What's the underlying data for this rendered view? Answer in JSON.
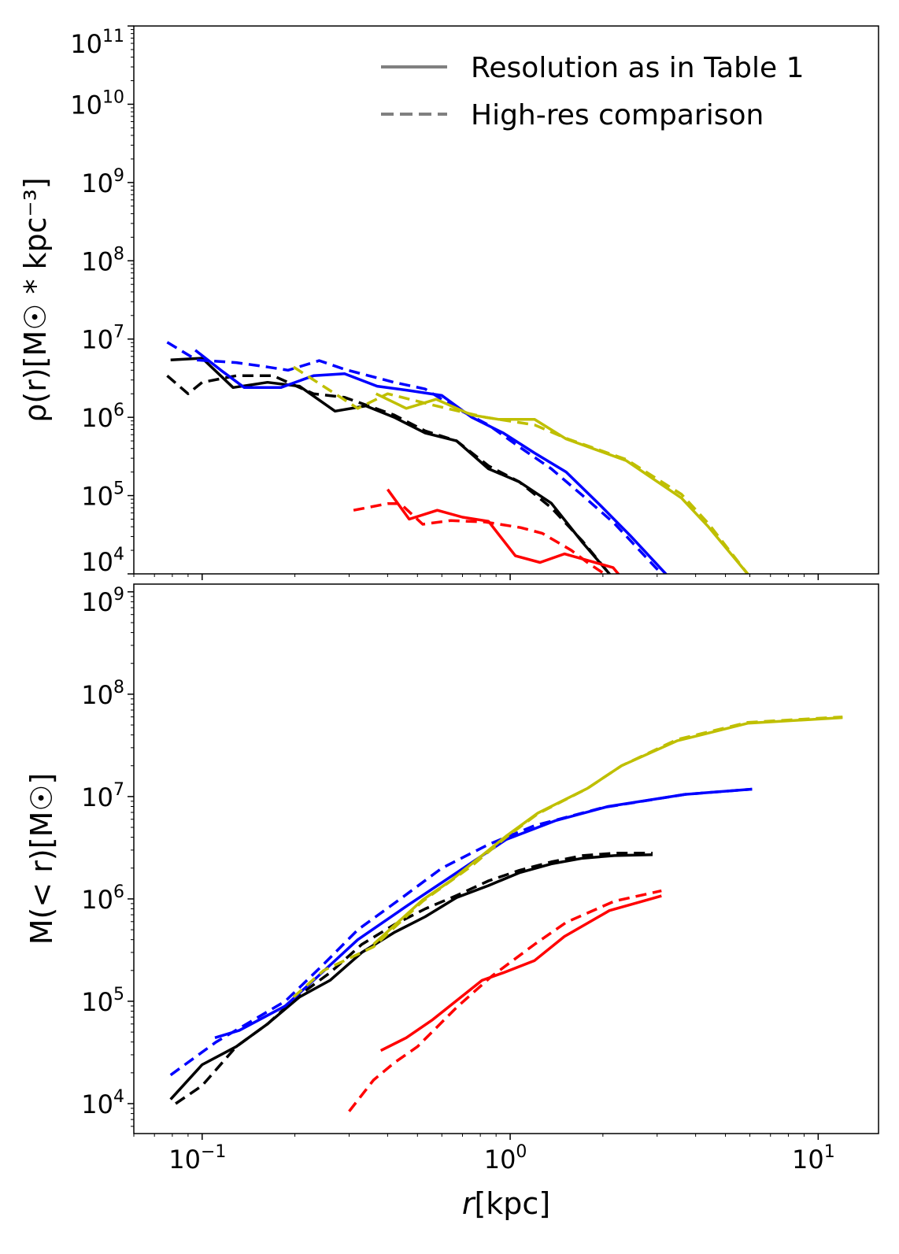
{
  "legend": {
    "position": "top-right",
    "entries": [
      {
        "label": "Resolution as in Table 1",
        "style": "solid",
        "color": "#808080"
      },
      {
        "label": "High-res comparison",
        "style": "dashed",
        "color": "#808080"
      }
    ]
  },
  "xaxis": {
    "label": "r[kpc]",
    "label_italic": "r",
    "label_rest": "[kpc]",
    "scale": "log",
    "xlim": [
      0.06,
      15.7
    ],
    "ticks": [
      0.1,
      1,
      10
    ],
    "tick_labels": [
      {
        "base": "10",
        "exp": "−1"
      },
      {
        "base": "10",
        "exp": "0"
      },
      {
        "base": "10",
        "exp": "1"
      }
    ]
  },
  "chart_data": [
    {
      "type": "line",
      "panel": "density",
      "ylabel": "ρ(r)[M☉ * kpc⁻³]",
      "yscale": "log",
      "ylim": [
        10000,
        100000000000
      ],
      "yticks": [
        10000.0,
        100000.0,
        1000000.0,
        10000000.0,
        100000000.0,
        1000000000.0,
        10000000000.0,
        100000000000.0
      ],
      "ytick_labels": [
        {
          "base": "10",
          "exp": "4"
        },
        {
          "base": "10",
          "exp": "5"
        },
        {
          "base": "10",
          "exp": "6"
        },
        {
          "base": "10",
          "exp": "7"
        },
        {
          "base": "10",
          "exp": "8"
        },
        {
          "base": "10",
          "exp": "9"
        },
        {
          "base": "10",
          "exp": "10"
        },
        {
          "base": "10",
          "exp": "11"
        }
      ],
      "series": [
        {
          "name": "black-solid",
          "color": "#000000",
          "style": "solid",
          "points": [
            [
              0.079,
              5400000.0
            ],
            [
              0.1,
              5700000.0
            ],
            [
              0.126,
              2400000.0
            ],
            [
              0.163,
              2800000.0
            ],
            [
              0.207,
              2500000.0
            ],
            [
              0.27,
              1200000.0
            ],
            [
              0.34,
              1400000.0
            ],
            [
              0.42,
              1000000.0
            ],
            [
              0.53,
              630000.0
            ],
            [
              0.67,
              500000.0
            ],
            [
              0.85,
              220000.0
            ],
            [
              1.07,
              150000.0
            ],
            [
              1.36,
              80000.0
            ],
            [
              1.72,
              25000.0
            ],
            [
              2.1,
              10000.0
            ],
            [
              2.3,
              7000.0
            ]
          ]
        },
        {
          "name": "black-dashed",
          "color": "#000000",
          "style": "dashed",
          "points": [
            [
              0.077,
              3400000.0
            ],
            [
              0.09,
              2000000.0
            ],
            [
              0.1,
              2800000.0
            ],
            [
              0.129,
              3400000.0
            ],
            [
              0.17,
              3400000.0
            ],
            [
              0.23,
              2000000.0
            ],
            [
              0.29,
              1800000.0
            ],
            [
              0.42,
              1070000.0
            ],
            [
              0.53,
              670000.0
            ],
            [
              0.67,
              500000.0
            ],
            [
              0.85,
              240000.0
            ],
            [
              1.07,
              150000.0
            ],
            [
              1.36,
              70000.0
            ],
            [
              1.72,
              26000.0
            ],
            [
              2.1,
              10000.0
            ],
            [
              2.3,
              7000.0
            ]
          ]
        },
        {
          "name": "blue-solid",
          "color": "#0000ff",
          "style": "solid",
          "points": [
            [
              0.095,
              7200000.0
            ],
            [
              0.115,
              4000000.0
            ],
            [
              0.137,
              2400000.0
            ],
            [
              0.18,
              2400000.0
            ],
            [
              0.23,
              3400000.0
            ],
            [
              0.29,
              3600000.0
            ],
            [
              0.37,
              2500000.0
            ],
            [
              0.47,
              2200000.0
            ],
            [
              0.6,
              1900000.0
            ],
            [
              0.75,
              1000000.0
            ],
            [
              0.95,
              630000.0
            ],
            [
              1.2,
              350000.0
            ],
            [
              1.52,
              200000.0
            ],
            [
              1.93,
              80000.0
            ],
            [
              2.45,
              31000.0
            ],
            [
              3.2,
              10000.0
            ],
            [
              3.4,
              7000.0
            ]
          ]
        },
        {
          "name": "blue-dashed",
          "color": "#0000ff",
          "style": "dashed",
          "points": [
            [
              0.077,
              9100000.0
            ],
            [
              0.096,
              5400000.0
            ],
            [
              0.129,
              5000000.0
            ],
            [
              0.163,
              4400000.0
            ],
            [
              0.19,
              4000000.0
            ],
            [
              0.24,
              5300000.0
            ],
            [
              0.29,
              4100000.0
            ],
            [
              0.42,
              2800000.0
            ],
            [
              0.53,
              2300000.0
            ],
            [
              0.67,
              1300000.0
            ],
            [
              0.85,
              800000.0
            ],
            [
              1.07,
              420000.0
            ],
            [
              1.36,
              220000.0
            ],
            [
              1.72,
              100000.0
            ],
            [
              2.18,
              44000.0
            ],
            [
              3.1,
              10000.0
            ],
            [
              3.3,
              7000.0
            ]
          ]
        },
        {
          "name": "yellow-solid",
          "color": "#bfbf00",
          "style": "solid",
          "points": [
            [
              0.367,
              2000000.0
            ],
            [
              0.46,
              1300000.0
            ],
            [
              0.575,
              1700000.0
            ],
            [
              0.75,
              1070000.0
            ],
            [
              0.92,
              940000.0
            ],
            [
              1.2,
              940000.0
            ],
            [
              1.52,
              530000.0
            ],
            [
              2.38,
              280000.0
            ],
            [
              3.6,
              93000.0
            ],
            [
              4.4,
              40000.0
            ],
            [
              5.9,
              10000.0
            ],
            [
              6.3,
              7000.0
            ]
          ]
        },
        {
          "name": "yellow-dashed",
          "color": "#bfbf00",
          "style": "dashed",
          "points": [
            [
              0.198,
              4400000.0
            ],
            [
              0.32,
              1300000.0
            ],
            [
              0.4,
              2000000.0
            ],
            [
              0.575,
              1400000.0
            ],
            [
              0.83,
              1000000.0
            ],
            [
              1.2,
              800000.0
            ],
            [
              1.52,
              540000.0
            ],
            [
              2.38,
              290000.0
            ],
            [
              3.6,
              104000.0
            ],
            [
              4.4,
              44000.0
            ],
            [
              5.9,
              10000.0
            ],
            [
              6.3,
              7000.0
            ]
          ]
        },
        {
          "name": "red-solid",
          "color": "#ff0000",
          "style": "solid",
          "points": [
            [
              0.4,
              120000.0
            ],
            [
              0.47,
              50000.0
            ],
            [
              0.58,
              65000.0
            ],
            [
              0.7,
              53000.0
            ],
            [
              0.85,
              47000.0
            ],
            [
              1.04,
              17000.0
            ],
            [
              1.25,
              14000.0
            ],
            [
              1.5,
              18000.0
            ],
            [
              2.16,
              12000.0
            ],
            [
              2.35,
              8000.0
            ]
          ]
        },
        {
          "name": "red-dashed",
          "color": "#ff0000",
          "style": "dashed",
          "points": [
            [
              0.31,
              65000.0
            ],
            [
              0.4,
              79000.0
            ],
            [
              0.44,
              79000.0
            ],
            [
              0.52,
              43000.0
            ],
            [
              0.64,
              48000.0
            ],
            [
              0.83,
              46000.0
            ],
            [
              1.08,
              39000.0
            ],
            [
              1.27,
              33000.0
            ],
            [
              1.58,
              20000.0
            ],
            [
              1.78,
              14000.0
            ],
            [
              2.2,
              8000.0
            ]
          ]
        }
      ]
    },
    {
      "type": "line",
      "panel": "enclosed-mass",
      "ylabel": "M(< r)[M☉]",
      "yscale": "log",
      "ylim": [
        5100,
        1190000000
      ],
      "yticks": [
        10000.0,
        100000.0,
        1000000.0,
        10000000.0,
        100000000.0,
        1000000000.0
      ],
      "ytick_labels": [
        {
          "base": "10",
          "exp": "4"
        },
        {
          "base": "10",
          "exp": "5"
        },
        {
          "base": "10",
          "exp": "6"
        },
        {
          "base": "10",
          "exp": "7"
        },
        {
          "base": "10",
          "exp": "8"
        },
        {
          "base": "10",
          "exp": "9"
        }
      ],
      "series": [
        {
          "name": "black-solid",
          "color": "#000000",
          "style": "solid",
          "points": [
            [
              0.079,
              11000.0
            ],
            [
              0.1,
              24000.0
            ],
            [
              0.129,
              36000.0
            ],
            [
              0.163,
              60000.0
            ],
            [
              0.207,
              110000.0
            ],
            [
              0.26,
              160000.0
            ],
            [
              0.33,
              300000.0
            ],
            [
              0.42,
              470000.0
            ],
            [
              0.53,
              670000.0
            ],
            [
              0.67,
              1030000.0
            ],
            [
              0.85,
              1350000.0
            ],
            [
              1.07,
              1800000.0
            ],
            [
              1.36,
              2200000.0
            ],
            [
              1.72,
              2500000.0
            ],
            [
              2.18,
              2650000.0
            ],
            [
              2.9,
              2700000.0
            ]
          ]
        },
        {
          "name": "black-dashed",
          "color": "#000000",
          "style": "dashed",
          "points": [
            [
              0.082,
              10000.0
            ],
            [
              0.1,
              15000.0
            ],
            [
              0.129,
              36000.0
            ],
            [
              0.163,
              60000.0
            ],
            [
              0.207,
              115000.0
            ],
            [
              0.26,
              190000.0
            ],
            [
              0.33,
              360000.0
            ],
            [
              0.42,
              560000.0
            ],
            [
              0.53,
              800000.0
            ],
            [
              0.67,
              1080000.0
            ],
            [
              0.85,
              1500000.0
            ],
            [
              1.07,
              1900000.0
            ],
            [
              1.36,
              2300000.0
            ],
            [
              1.72,
              2650000.0
            ],
            [
              2.18,
              2800000.0
            ],
            [
              2.9,
              2800000.0
            ]
          ]
        },
        {
          "name": "blue-solid",
          "color": "#0000ff",
          "style": "solid",
          "points": [
            [
              0.11,
              44000.0
            ],
            [
              0.132,
              52000.0
            ],
            [
              0.186,
              90000.0
            ],
            [
              0.235,
              170000.0
            ],
            [
              0.32,
              400000.0
            ],
            [
              0.466,
              870000.0
            ],
            [
              0.67,
              1800000.0
            ],
            [
              0.97,
              3800000.0
            ],
            [
              1.4,
              5800000.0
            ],
            [
              2.08,
              8000000.0
            ],
            [
              3.7,
              10500000.0
            ],
            [
              6.1,
              11800000.0
            ]
          ]
        },
        {
          "name": "blue-dashed",
          "color": "#0000ff",
          "style": "dashed",
          "points": [
            [
              0.079,
              19000.0
            ],
            [
              0.111,
              40000.0
            ],
            [
              0.186,
              100000.0
            ],
            [
              0.248,
              230000.0
            ],
            [
              0.32,
              500000.0
            ],
            [
              0.44,
              1000000.0
            ],
            [
              0.6,
              2000000.0
            ],
            [
              0.85,
              3400000.0
            ],
            [
              1.2,
              5200000.0
            ],
            [
              2.0,
              7800000.0
            ],
            [
              3.7,
              10500000.0
            ],
            [
              6.1,
              11800000.0
            ]
          ]
        },
        {
          "name": "yellow-solid",
          "color": "#bfbf00",
          "style": "solid",
          "points": [
            [
              0.36,
              360000.0
            ],
            [
              0.52,
              980000.0
            ],
            [
              0.64,
              1500000.0
            ],
            [
              0.97,
              4100000.0
            ],
            [
              1.23,
              6900000.0
            ],
            [
              1.78,
              12000000.0
            ],
            [
              2.3,
              20000000.0
            ],
            [
              3.48,
              35000000.0
            ],
            [
              5.9,
              52000000.0
            ],
            [
              12,
              59000000.0
            ]
          ]
        },
        {
          "name": "yellow-dashed",
          "color": "#bfbf00",
          "style": "dashed",
          "points": [
            [
              0.198,
              110000.0
            ],
            [
              0.248,
              200000.0
            ],
            [
              0.36,
              340000.0
            ],
            [
              0.52,
              950000.0
            ],
            [
              0.75,
              2100000.0
            ],
            [
              0.97,
              4000000.0
            ],
            [
              1.23,
              6800000.0
            ],
            [
              1.78,
              12000000.0
            ],
            [
              2.3,
              20000000.0
            ],
            [
              3.48,
              36000000.0
            ],
            [
              5.9,
              53000000.0
            ],
            [
              12,
              60000000.0
            ]
          ]
        },
        {
          "name": "red-solid",
          "color": "#ff0000",
          "style": "solid",
          "points": [
            [
              0.38,
              33000.0
            ],
            [
              0.46,
              44000.0
            ],
            [
              0.56,
              66000.0
            ],
            [
              0.81,
              160000.0
            ],
            [
              0.95,
              190000.0
            ],
            [
              1.2,
              250000.0
            ],
            [
              1.5,
              430000.0
            ],
            [
              2.1,
              770000.0
            ],
            [
              3.1,
              1070000.0
            ]
          ]
        },
        {
          "name": "red-dashed",
          "color": "#ff0000",
          "style": "dashed",
          "points": [
            [
              0.3,
              8400.0
            ],
            [
              0.36,
              17000.0
            ],
            [
              0.42,
              25000.0
            ],
            [
              0.5,
              36000.0
            ],
            [
              0.67,
              87000.0
            ],
            [
              0.87,
              175000.0
            ],
            [
              1.2,
              360000.0
            ],
            [
              1.52,
              590000.0
            ],
            [
              2.18,
              950000.0
            ],
            [
              3.1,
              1200000.0
            ]
          ]
        }
      ]
    }
  ]
}
